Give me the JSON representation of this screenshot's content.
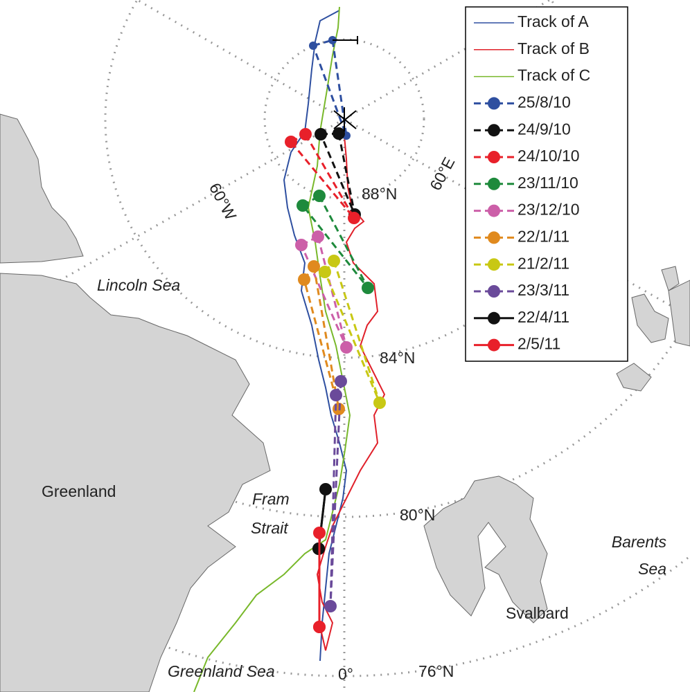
{
  "legend": [
    {
      "label": "Track of A",
      "color": "#2e4fa0",
      "style": "line"
    },
    {
      "label": "Track of B",
      "color": "#e0202a",
      "style": "line"
    },
    {
      "label": "Track of C",
      "color": "#78b82a",
      "style": "line"
    },
    {
      "label": "25/8/10",
      "color": "#2e4fa0",
      "style": "dashed"
    },
    {
      "label": "24/9/10",
      "color": "#111111",
      "style": "dashed"
    },
    {
      "label": "24/10/10",
      "color": "#e8202a",
      "style": "dashed"
    },
    {
      "label": "23/11/10",
      "color": "#1e8a3c",
      "style": "dashed"
    },
    {
      "label": "23/12/10",
      "color": "#cc5fa8",
      "style": "dashed"
    },
    {
      "label": "22/1/11",
      "color": "#e08a1e",
      "style": "dashed"
    },
    {
      "label": "21/2/11",
      "color": "#c8c814",
      "style": "dashed"
    },
    {
      "label": "23/3/11",
      "color": "#6a4a9a",
      "style": "dashed"
    },
    {
      "label": "22/4/11",
      "color": "#111111",
      "style": "solid"
    },
    {
      "label": "2/5/11",
      "color": "#e8202a",
      "style": "solid"
    }
  ],
  "labels": {
    "lincoln_sea": "Lincoln Sea",
    "greenland": "Greenland",
    "fram_strait": [
      "Fram",
      "Strait"
    ],
    "greenland_sea": "Greenland Sea",
    "svalbard": "Svalbard",
    "barents_sea": [
      "Barents",
      "Sea"
    ],
    "lat88": "88°N",
    "lat84": "84°N",
    "lat80": "80°N",
    "lat76": "76°N",
    "lon0": "0°",
    "lon60w": "60°W",
    "lon60e": "60°E"
  }
}
